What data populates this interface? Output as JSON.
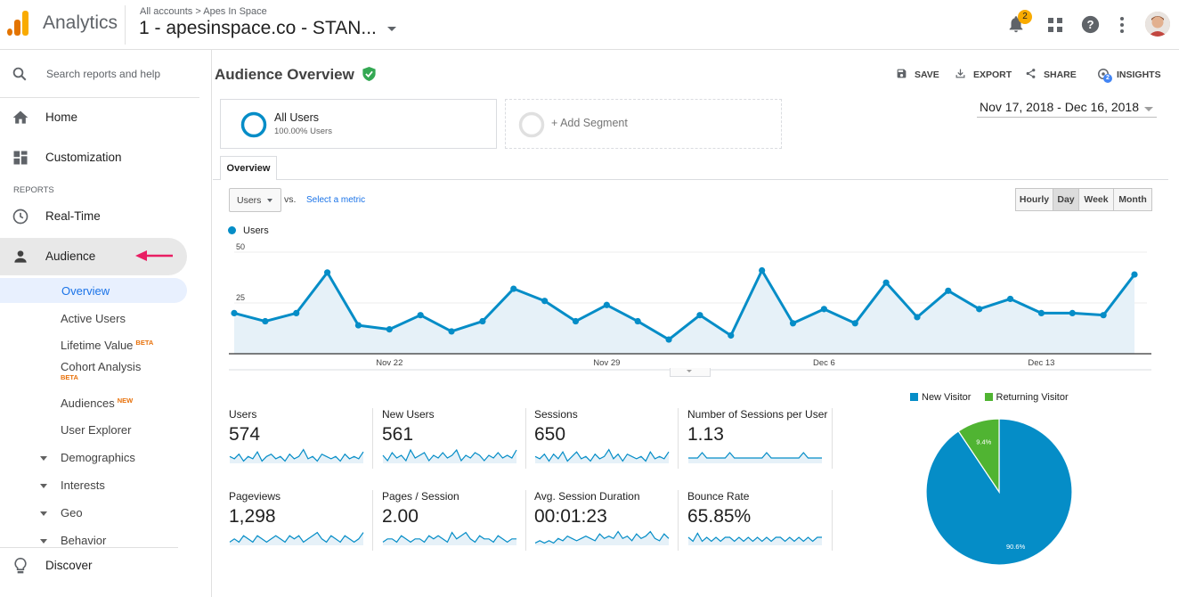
{
  "header": {
    "app_name": "Analytics",
    "breadcrumb": "All accounts > Apes In Space",
    "property": "1 - apesinspace.co - STAN...",
    "notification_count": "2",
    "colors": {
      "accent": "#4285f4",
      "logo_orange": "#f9ab00",
      "logo_dark": "#e37400"
    }
  },
  "sidebar": {
    "search_placeholder": "Search reports and help",
    "home": "Home",
    "customization": "Customization",
    "reports_heading": "REPORTS",
    "realtime": "Real-Time",
    "audience": "Audience",
    "sub_items": {
      "overview": "Overview",
      "active_users": "Active Users",
      "lifetime_value": "Lifetime Value",
      "lifetime_value_badge": "BETA",
      "cohort": "Cohort Analysis",
      "cohort_badge": "BETA",
      "audiences": "Audiences",
      "audiences_badge": "NEW",
      "user_explorer": "User Explorer",
      "demographics": "Demographics",
      "interests": "Interests",
      "geo": "Geo",
      "behavior": "Behavior"
    },
    "discover": "Discover"
  },
  "report": {
    "title": "Audience Overview",
    "actions": {
      "save": "SAVE",
      "export": "EXPORT",
      "share": "SHARE",
      "insights": "INSIGHTS",
      "insights_count": "2"
    },
    "segment": {
      "name": "All Users",
      "pct": "100.00% Users",
      "add": "+ Add Segment"
    },
    "date_range": "Nov 17, 2018 - Dec 16, 2018",
    "tab": "Overview",
    "metric_select": "Users",
    "vs": "vs.",
    "select_metric": "Select a metric",
    "granularity": [
      "Hourly",
      "Day",
      "Week",
      "Month"
    ],
    "active_granularity": "Day"
  },
  "chart_data": [
    {
      "type": "area",
      "series": [
        {
          "name": "Users",
          "color": "#058dc7",
          "values": [
            20,
            16,
            20,
            40,
            14,
            12,
            19,
            11,
            16,
            32,
            26,
            16,
            24,
            16,
            7,
            19,
            9,
            41,
            15,
            22,
            15,
            35,
            18,
            31,
            22,
            27,
            20,
            20,
            19,
            39
          ]
        }
      ],
      "x": [
        "Nov 17",
        "Nov 18",
        "Nov 19",
        "Nov 20",
        "Nov 21",
        "Nov 22",
        "Nov 23",
        "Nov 24",
        "Nov 25",
        "Nov 26",
        "Nov 27",
        "Nov 28",
        "Nov 29",
        "Nov 30",
        "Dec 1",
        "Dec 2",
        "Dec 3",
        "Dec 4",
        "Dec 5",
        "Dec 6",
        "Dec 7",
        "Dec 8",
        "Dec 9",
        "Dec 10",
        "Dec 11",
        "Dec 12",
        "Dec 13",
        "Dec 14",
        "Dec 15",
        "Dec 16"
      ],
      "x_tick_labels": [
        "Nov 22",
        "Nov 29",
        "Dec 6",
        "Dec 13"
      ],
      "y_tick_labels": [
        "50",
        "25"
      ],
      "ylim": [
        0,
        50
      ],
      "legend": "top-left"
    },
    {
      "type": "pie",
      "categories": [
        "New Visitor",
        "Returning Visitor"
      ],
      "values": [
        90.6,
        9.4
      ],
      "colors": [
        "#058dc7",
        "#50b432"
      ],
      "labels": [
        "90.6%",
        "9.4%"
      ],
      "legend": "top"
    }
  ],
  "metrics": [
    {
      "name": "Users",
      "value": "574",
      "spark": [
        5,
        4,
        6,
        3,
        5,
        4,
        7,
        3,
        5,
        6,
        4,
        5,
        3,
        6,
        4,
        5,
        8,
        4,
        5,
        3,
        6,
        5,
        4,
        5,
        3,
        6,
        4,
        5,
        4,
        7
      ]
    },
    {
      "name": "New Users",
      "value": "561",
      "spark": [
        5,
        3,
        6,
        4,
        5,
        3,
        7,
        4,
        5,
        6,
        3,
        5,
        4,
        6,
        4,
        5,
        7,
        3,
        5,
        4,
        6,
        5,
        3,
        5,
        4,
        6,
        4,
        5,
        4,
        7
      ]
    },
    {
      "name": "Sessions",
      "value": "650",
      "spark": [
        5,
        4,
        6,
        3,
        6,
        4,
        7,
        3,
        5,
        7,
        4,
        5,
        3,
        6,
        4,
        5,
        8,
        4,
        6,
        3,
        6,
        5,
        4,
        5,
        3,
        7,
        4,
        5,
        4,
        7
      ]
    },
    {
      "name": "Number of Sessions per User",
      "value": "1.13",
      "spark": [
        5,
        5,
        5,
        6,
        5,
        5,
        5,
        5,
        5,
        6,
        5,
        5,
        5,
        5,
        5,
        5,
        5,
        6,
        5,
        5,
        5,
        5,
        5,
        5,
        5,
        6,
        5,
        5,
        5,
        5
      ]
    },
    {
      "name": "Pageviews",
      "value": "1,298",
      "spark": [
        4,
        5,
        4,
        6,
        5,
        4,
        6,
        5,
        4,
        5,
        6,
        5,
        4,
        6,
        5,
        6,
        4,
        5,
        6,
        7,
        5,
        4,
        6,
        5,
        4,
        6,
        5,
        4,
        5,
        7
      ]
    },
    {
      "name": "Pages / Session",
      "value": "2.00",
      "spark": [
        4,
        5,
        5,
        4,
        6,
        5,
        4,
        5,
        5,
        4,
        6,
        5,
        6,
        5,
        4,
        7,
        5,
        6,
        7,
        5,
        4,
        6,
        5,
        5,
        4,
        6,
        5,
        4,
        5,
        5
      ]
    },
    {
      "name": "Avg. Session Duration",
      "value": "00:01:23",
      "spark": [
        3,
        4,
        3,
        4,
        3,
        5,
        4,
        6,
        5,
        4,
        5,
        6,
        5,
        4,
        7,
        5,
        6,
        5,
        8,
        5,
        6,
        4,
        7,
        5,
        6,
        8,
        5,
        4,
        7,
        5
      ]
    },
    {
      "name": "Bounce Rate",
      "value": "65.85%",
      "spark": [
        6,
        5,
        7,
        5,
        6,
        5,
        6,
        5,
        6,
        6,
        5,
        6,
        5,
        6,
        5,
        6,
        5,
        6,
        5,
        6,
        6,
        5,
        6,
        5,
        6,
        5,
        6,
        5,
        6,
        6
      ]
    }
  ]
}
